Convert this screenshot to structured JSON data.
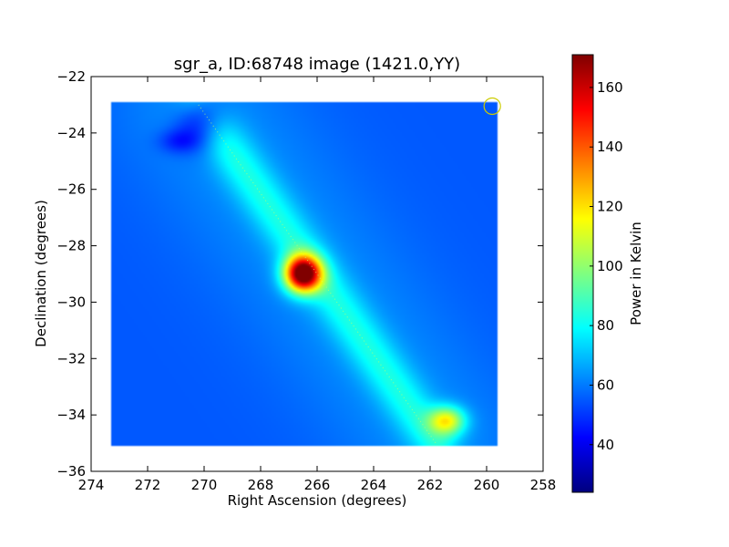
{
  "chart_data": {
    "type": "heatmap",
    "title": "sgr_a, ID:68748 image (1421.0,YY)",
    "xlabel": "Right Ascension (degrees)",
    "ylabel": "Declination (degrees)",
    "xlim": [
      274,
      258
    ],
    "ylim": [
      -36,
      -22
    ],
    "x_ticks": [
      274,
      272,
      270,
      268,
      266,
      264,
      262,
      260,
      258
    ],
    "x_tick_labels": [
      "274",
      "272",
      "270",
      "268",
      "266",
      "264",
      "262",
      "260",
      "258"
    ],
    "y_ticks": [
      -22,
      -24,
      -26,
      -28,
      -30,
      -32,
      -34,
      -36
    ],
    "y_tick_labels": [
      "−22",
      "−24",
      "−26",
      "−28",
      "−30",
      "−32",
      "−34",
      "−36"
    ],
    "colormap": "jet",
    "background_value": 55,
    "map_extent": {
      "ra": [
        273.3,
        259.6
      ],
      "dec": [
        -35.1,
        -22.9
      ]
    },
    "features": [
      {
        "ra": 266.5,
        "dec": -29.0,
        "peak": 170,
        "sigma_ra": 0.45,
        "sigma_dec": 0.45
      },
      {
        "ra": 261.4,
        "dec": -34.2,
        "peak": 105,
        "sigma_ra": 0.45,
        "sigma_dec": 0.35
      },
      {
        "ra": 270.9,
        "dec": -24.3,
        "peak": 42,
        "sigma_ra": 0.5,
        "sigma_dec": 0.3
      },
      {
        "ra": 270.1,
        "dec": -23.5,
        "peak": 28,
        "sigma_ra": 0.6,
        "sigma_dec": 0.7
      }
    ],
    "ridge": {
      "from": {
        "ra": 270.2,
        "dec": -23.0
      },
      "to": {
        "ra": 261.8,
        "dec": -35.0
      },
      "value": 75
    },
    "marker_circle": {
      "ra": 259.8,
      "dec": -23.05,
      "color": "#cccc00"
    },
    "colorbar": {
      "label": "Power in Kelvin",
      "range": [
        24,
        171
      ],
      "ticks": [
        40,
        60,
        80,
        100,
        120,
        140,
        160
      ],
      "tick_labels": [
        "40",
        "60",
        "80",
        "100",
        "120",
        "140",
        "160"
      ]
    },
    "grid": false,
    "legend": "none"
  }
}
